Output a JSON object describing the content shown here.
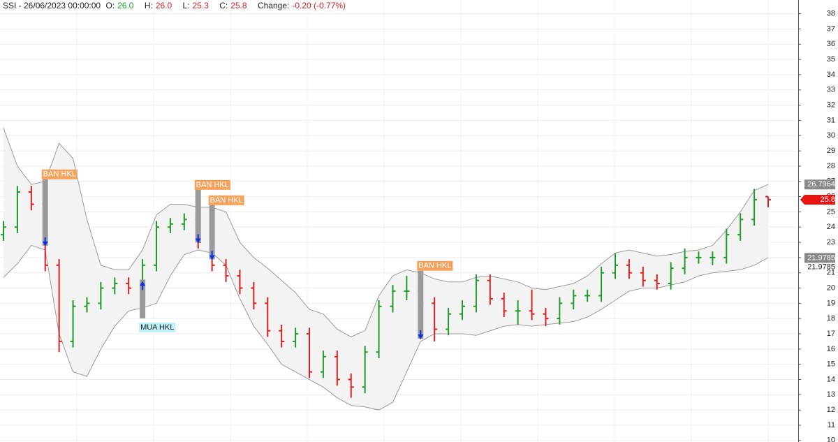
{
  "header": {
    "symbol": "SSI - 26/06/2023 00:00:00",
    "fields": [
      {
        "label": "O:",
        "value": "26.0"
      },
      {
        "label": "H:",
        "value": "26.0"
      },
      {
        "label": "L:",
        "value": "25.3"
      },
      {
        "label": "C:",
        "value": "25.8"
      },
      {
        "label": "Change:",
        "value": "-0.20 (-0.77%)"
      }
    ]
  },
  "chart_data": {
    "type": "ohlc",
    "open": [
      23.5,
      24,
      26.3,
      25.5,
      21.5,
      16.5,
      18.8,
      19,
      20,
      20.3,
      20,
      21.5,
      24,
      24.2,
      24.5,
      23,
      21.5,
      20.8,
      20,
      19,
      17.2,
      16.5,
      17,
      14.5,
      15.5,
      14,
      13.5,
      15.8,
      18.8,
      19.8,
      19.8,
      19,
      17.3,
      18.3,
      18.8,
      20.5,
      19.3,
      18.5,
      18.5,
      18.3,
      18,
      19,
      19.5,
      19.5,
      21,
      21.5,
      21,
      20.5,
      20.3,
      21.3,
      22,
      22,
      22,
      23.5,
      24.5,
      26
    ],
    "high": [
      24.4,
      26.7,
      26.7,
      25.9,
      21.9,
      19.2,
      19.4,
      20.4,
      20.7,
      20.7,
      21.9,
      24.4,
      24.6,
      24.9,
      24.9,
      23.4,
      21.9,
      21.2,
      20.4,
      19.4,
      17.6,
      17.4,
      17.4,
      15.9,
      15.9,
      14.4,
      16.2,
      19.2,
      20.2,
      20.8,
      20.2,
      19.4,
      18.7,
      19.2,
      20.9,
      20.9,
      19.7,
      19.2,
      19.9,
      18.7,
      19.4,
      19.9,
      19.9,
      21.4,
      22.3,
      21.9,
      21.4,
      20.9,
      21.7,
      22.6,
      22.4,
      22.4,
      23.9,
      24.9,
      26.5,
      26
    ],
    "low": [
      23.1,
      23.6,
      25.1,
      21.1,
      15.8,
      16.1,
      18.4,
      18.6,
      19.6,
      19.6,
      19.6,
      21.1,
      23.6,
      23.8,
      22.6,
      21.1,
      20.4,
      19.6,
      18.6,
      16.8,
      16.1,
      16.1,
      14.1,
      14.1,
      13.6,
      12.8,
      13.1,
      15.4,
      18.4,
      19.2,
      18.6,
      16.5,
      16.9,
      17.9,
      18.4,
      18.9,
      18.1,
      17.6,
      17.9,
      17.5,
      17.6,
      18.6,
      19.1,
      19.1,
      20.6,
      20.6,
      20.1,
      19.9,
      19.9,
      20.9,
      21.6,
      21.5,
      21.6,
      23.1,
      24.1,
      25.3
    ],
    "close": [
      24,
      26.3,
      25.5,
      21.5,
      16.5,
      18.8,
      19,
      20,
      20.3,
      20,
      21.5,
      24,
      24.2,
      24.5,
      23,
      21.5,
      20.8,
      20,
      19,
      17.2,
      16.5,
      17,
      14.5,
      15.5,
      14,
      13.5,
      15.8,
      18.8,
      19.8,
      19.8,
      19,
      17.3,
      18.3,
      18.8,
      20.5,
      19.3,
      18.5,
      18.5,
      18.3,
      18,
      19,
      19.5,
      19.5,
      21,
      21.5,
      21,
      20.5,
      20.3,
      21.3,
      22,
      22,
      22,
      23.5,
      24.5,
      25.8,
      25.8
    ],
    "up_color": "#1f9a2a",
    "down_color": "#d91e1e",
    "bands": {
      "color": "#9a9a9a",
      "fill": "#f3f3f3",
      "upper": [
        30.5,
        28,
        26.8,
        27,
        29.5,
        28.5,
        24.5,
        21.5,
        21.2,
        21.2,
        22.5,
        24.8,
        25.5,
        25.5,
        25.3,
        25.3,
        25,
        23,
        22,
        21.3,
        20.5,
        19.7,
        18.6,
        18.3,
        17.3,
        16.8,
        17.2,
        19.5,
        20.8,
        21.2,
        21,
        20.6,
        20.4,
        20.4,
        20.7,
        20.8,
        20.6,
        20.4,
        20,
        19.9,
        20.1,
        20.3,
        20.8,
        21.6,
        22.3,
        22.5,
        22.3,
        22.1,
        22.2,
        22.4,
        22.5,
        22.8,
        23.8,
        25,
        26.4,
        26.8
      ],
      "lower": [
        20.7,
        21.6,
        22.8,
        22.5,
        17,
        14.5,
        14.2,
        16,
        17.5,
        18.5,
        18.7,
        19,
        20.8,
        22.2,
        22.5,
        22.3,
        21.5,
        19.3,
        17.5,
        16.3,
        15,
        14.5,
        14,
        13.5,
        12.8,
        12.3,
        12.2,
        12,
        12.5,
        14.5,
        16.5,
        17,
        17,
        17,
        16.9,
        17.2,
        17.5,
        17.6,
        17.5,
        17.6,
        17.7,
        17.8,
        18.1,
        18.6,
        19.2,
        19.8,
        20,
        20,
        20.2,
        20.4,
        20.8,
        21,
        21.1,
        21.2,
        21.5,
        22
      ]
    },
    "signals": [
      {
        "label": "BAN HKL",
        "bar": 3,
        "price": 23.1
      },
      {
        "label": "MUA HKL",
        "bar": 10,
        "price": 20.1
      },
      {
        "label": "BAN HKL",
        "bar": 14,
        "price": 23.3
      },
      {
        "label": "BAN HKL",
        "bar": 15,
        "price": 22.2
      },
      {
        "label": "BAN HKL",
        "bar": 30,
        "price": 17
      }
    ],
    "ylim": [
      9.9,
      38.9
    ],
    "yticks": [
      10,
      11,
      12,
      13,
      14,
      15,
      16,
      17,
      18,
      19,
      20,
      21,
      22,
      23,
      24,
      25,
      26,
      27,
      28,
      29,
      30,
      31,
      32,
      33,
      34,
      35,
      36,
      37,
      38
    ],
    "right_labels": [
      {
        "value": 26.7964,
        "color": "#888888"
      },
      {
        "value": 25.8,
        "color": "#e8140f"
      },
      {
        "value": 21.9785,
        "color": "#888888"
      },
      {
        "value": 21.9785,
        "color": "none"
      }
    ],
    "grid": true
  }
}
